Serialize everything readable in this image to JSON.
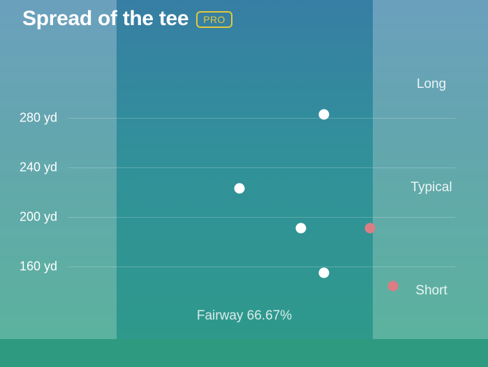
{
  "header": {
    "title": "Spread of the tee",
    "badge": "PRO"
  },
  "y_axis": {
    "ticks": [
      {
        "label": "280 yd",
        "value": 280
      },
      {
        "label": "240 yd",
        "value": 240
      },
      {
        "label": "200 yd",
        "value": 200
      },
      {
        "label": "160 yd",
        "value": 160
      }
    ]
  },
  "zones": {
    "long": "Long",
    "typical": "Typical",
    "short": "Short"
  },
  "fairway": {
    "label": "Fairway 66.67%",
    "percent": 66.67
  },
  "colors": {
    "in_fairway": "#ffffff",
    "missed": "#db7d84",
    "badge": "#e4c83c"
  },
  "shots": [
    {
      "distance_yd": 283,
      "lateral": 0.81,
      "in_fairway": true
    },
    {
      "distance_yd": 223,
      "lateral": 0.48,
      "in_fairway": true
    },
    {
      "distance_yd": 191,
      "lateral": 0.72,
      "in_fairway": true
    },
    {
      "distance_yd": 191,
      "lateral": 0.99,
      "in_fairway": false
    },
    {
      "distance_yd": 155,
      "lateral": 0.81,
      "in_fairway": true
    },
    {
      "distance_yd": 144,
      "lateral": 1.08,
      "in_fairway": false
    }
  ]
}
